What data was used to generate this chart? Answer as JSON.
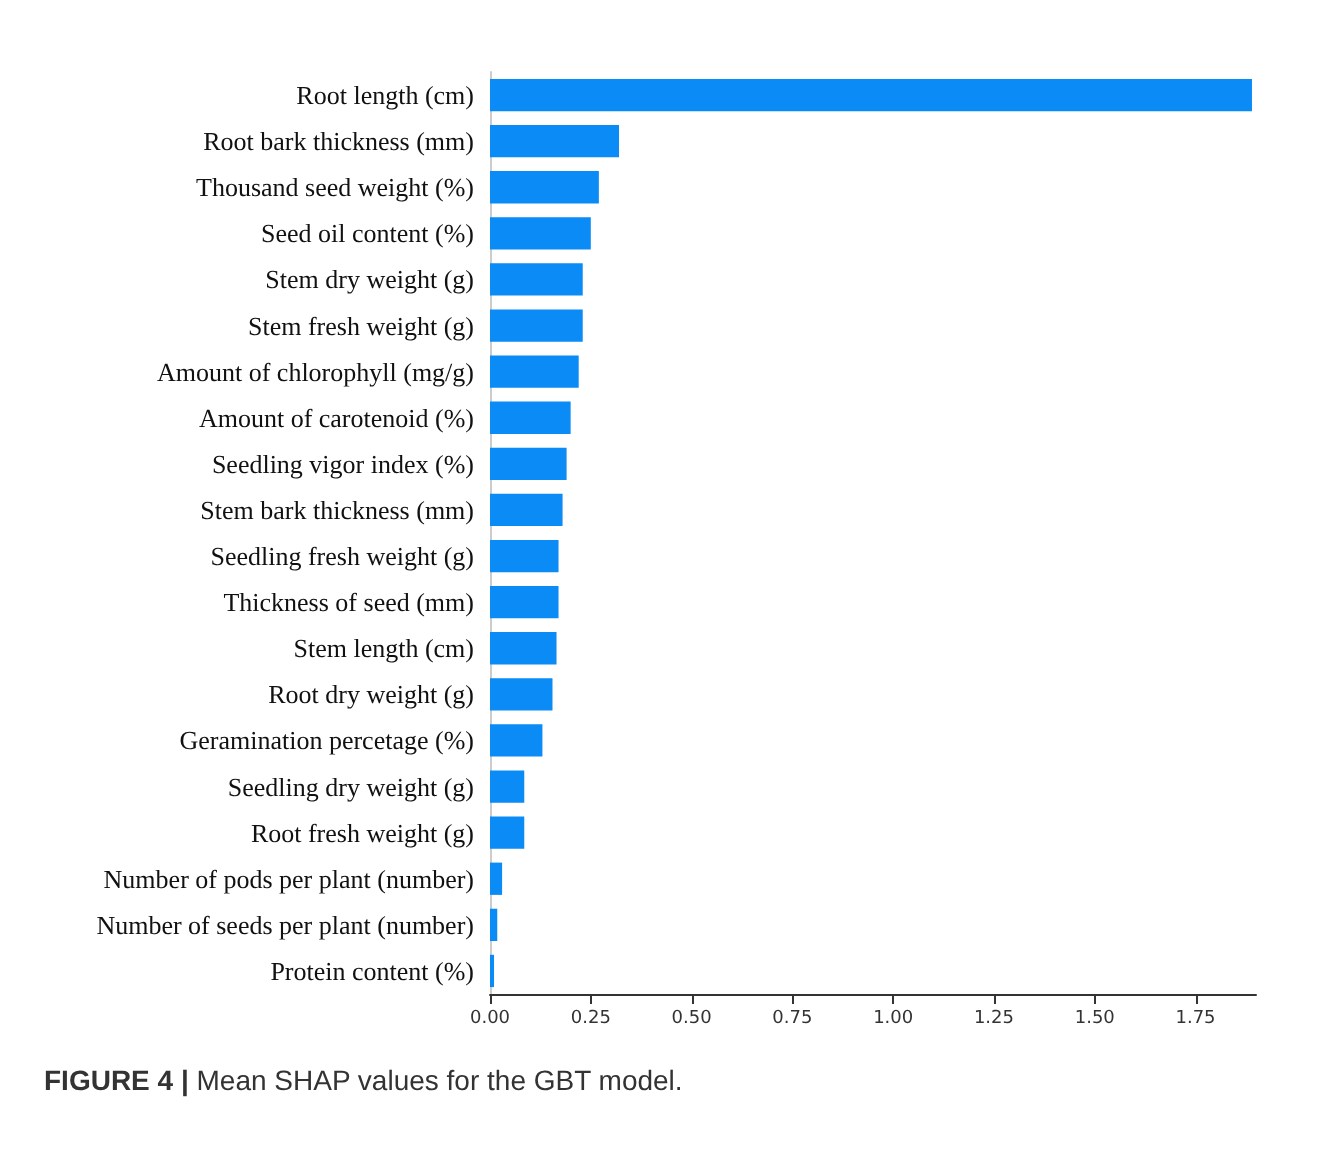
{
  "chart_data": {
    "type": "bar",
    "orientation": "horizontal",
    "categories": [
      "Root length (cm)",
      "Root bark thickness (mm)",
      "Thousand seed weight (%)",
      "Seed oil content (%)",
      "Stem dry weight (g)",
      "Stem fresh weight (g)",
      "Amount of chlorophyll (mg/g)",
      "Amount of carotenoid (%)",
      "Seedling vigor index (%)",
      "Stem bark thickness (mm)",
      "Seedling fresh weight (g)",
      "Thickness of seed (mm)",
      "Stem length (cm)",
      "Root dry weight (g)",
      "Geramination percetage (%)",
      "Seedling dry weight (g)",
      "Root fresh weight (g)",
      "Number of pods per plant (number)",
      "Number of seeds per plant (number)",
      "Protein content (%)"
    ],
    "values": [
      1.89,
      0.32,
      0.27,
      0.25,
      0.23,
      0.23,
      0.22,
      0.2,
      0.19,
      0.18,
      0.17,
      0.17,
      0.165,
      0.155,
      0.13,
      0.085,
      0.085,
      0.03,
      0.018,
      0.01
    ],
    "color": "#0a8bf5",
    "xlim": [
      0,
      1.9
    ],
    "xticks": [
      {
        "value": 0,
        "label": "0.00"
      },
      {
        "value": 0.25,
        "label": "0.25"
      },
      {
        "value": 0.5,
        "label": "0.50"
      },
      {
        "value": 0.75,
        "label": "0.75"
      },
      {
        "value": 1,
        "label": "1.00"
      },
      {
        "value": 1.25,
        "label": "1.25"
      },
      {
        "value": 1.5,
        "label": "1.50"
      },
      {
        "value": 1.75,
        "label": "1.75"
      }
    ],
    "grid": false,
    "annotations": [
      "FIGURE 4 | Mean SHAP values for the GBT model."
    ]
  }
}
